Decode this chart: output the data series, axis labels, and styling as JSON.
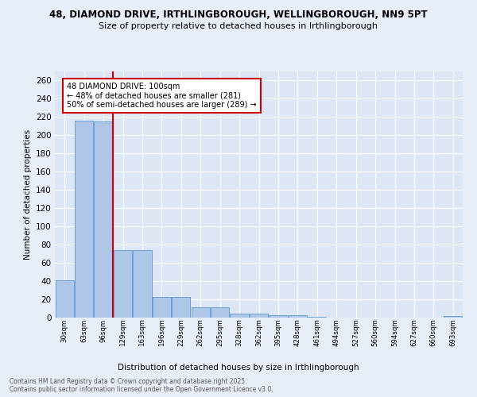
{
  "title_line1": "48, DIAMOND DRIVE, IRTHLINGBOROUGH, WELLINGBOROUGH, NN9 5PT",
  "title_line2": "Size of property relative to detached houses in Irthlingborough",
  "xlabel": "Distribution of detached houses by size in Irthlingborough",
  "ylabel": "Number of detached properties",
  "categories": [
    "30sqm",
    "63sqm",
    "96sqm",
    "129sqm",
    "163sqm",
    "196sqm",
    "229sqm",
    "262sqm",
    "295sqm",
    "328sqm",
    "362sqm",
    "395sqm",
    "428sqm",
    "461sqm",
    "494sqm",
    "527sqm",
    "560sqm",
    "594sqm",
    "627sqm",
    "660sqm",
    "693sqm"
  ],
  "values": [
    41,
    216,
    215,
    74,
    74,
    23,
    23,
    11,
    11,
    4,
    4,
    3,
    3,
    1,
    0,
    0,
    0,
    0,
    0,
    0,
    2
  ],
  "bar_color": "#aec6e8",
  "bar_edge_color": "#5b9bd5",
  "vline_x": 2.5,
  "vline_color": "#cc0000",
  "annotation_title": "48 DIAMOND DRIVE: 100sqm",
  "annotation_line1": "← 48% of detached houses are smaller (281)",
  "annotation_line2": "50% of semi-detached houses are larger (289) →",
  "annotation_box_color": "#cc0000",
  "ylim": [
    0,
    270
  ],
  "yticks": [
    0,
    20,
    40,
    60,
    80,
    100,
    120,
    140,
    160,
    180,
    200,
    220,
    240,
    260
  ],
  "footnote1": "Contains HM Land Registry data © Crown copyright and database right 2025.",
  "footnote2": "Contains public sector information licensed under the Open Government Licence v3.0.",
  "bg_color": "#e8eef7",
  "plot_bg_color": "#dce6f5"
}
